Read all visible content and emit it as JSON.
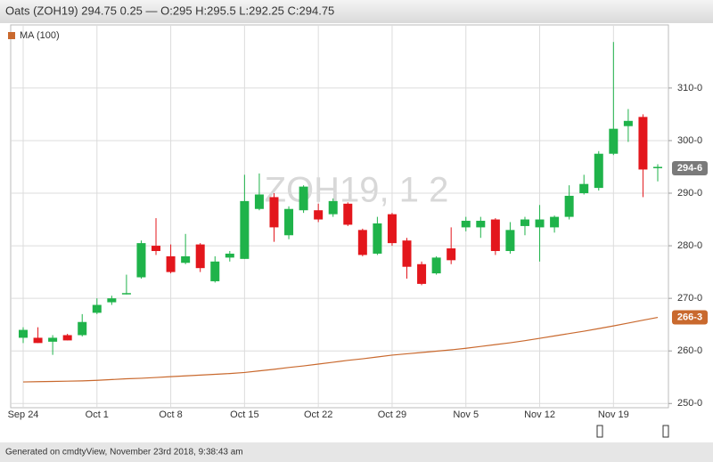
{
  "chart_data": {
    "type": "candlestick",
    "title": "Oats (ZOH19) 294.75 0.25 — O:295 H:295.5 L:292.25 C:294.75",
    "watermark": "ZOH19, 1 2",
    "footer": "Generated on cmdtyView, November 23rd 2018, 9:38:43 am",
    "categories": [
      "Sep 24",
      null,
      null,
      null,
      null,
      "Oct 1",
      null,
      null,
      null,
      null,
      "Oct 8",
      null,
      null,
      null,
      null,
      "Oct 15",
      null,
      null,
      null,
      null,
      "Oct 22",
      null,
      null,
      null,
      null,
      "Oct 29",
      null,
      null,
      null,
      null,
      "Nov 5",
      null,
      null,
      null,
      null,
      "Nov 12",
      null,
      null,
      null,
      null,
      "Nov 19",
      null,
      null,
      null
    ],
    "open": [
      262.5,
      262.5,
      261.75,
      263,
      263,
      267.25,
      269.25,
      270.75,
      274,
      280,
      278,
      276.75,
      280.25,
      273.25,
      277.75,
      277.5,
      287,
      289.25,
      282,
      286.75,
      286.75,
      286,
      288,
      283,
      278.5,
      286,
      281,
      276.5,
      274.75,
      279.5,
      283.5,
      283.5,
      285,
      279,
      283.75,
      283.5,
      283.5,
      285.5,
      290,
      291,
      297.5,
      302.75,
      304.5,
      295
    ],
    "high": [
      264.5,
      264.5,
      263,
      263.25,
      267,
      270,
      270.5,
      274.5,
      281,
      285.25,
      280.25,
      282.25,
      280.5,
      278,
      279,
      293.5,
      293.75,
      290,
      287.5,
      291.5,
      288,
      289,
      288.25,
      283.25,
      285.5,
      286.25,
      281.5,
      277,
      278,
      283.5,
      285.5,
      285.5,
      285.25,
      284.5,
      285.5,
      287.75,
      285.75,
      291.5,
      293.5,
      298,
      318.75,
      306,
      305,
      295.5
    ],
    "low": [
      261.5,
      261.5,
      259.25,
      262,
      262.75,
      267,
      268.75,
      270.75,
      273.75,
      278.25,
      274.75,
      276.5,
      275,
      273,
      277,
      277.5,
      286.75,
      280.75,
      281.25,
      286.25,
      284.5,
      285.5,
      283.75,
      278,
      278.25,
      280,
      273.75,
      272.5,
      274.5,
      276.5,
      282.75,
      281.5,
      278.25,
      278.5,
      282,
      277,
      282.5,
      285,
      289.75,
      290.5,
      297.25,
      299.75,
      289.25,
      292.25
    ],
    "close": [
      264,
      261.5,
      262.5,
      262,
      265.5,
      268.75,
      270,
      271,
      280.5,
      279,
      275,
      278,
      275.75,
      277,
      278.5,
      288.5,
      289.75,
      283.5,
      287,
      291.25,
      285,
      288.5,
      284,
      278.25,
      284.25,
      280.5,
      276,
      272.75,
      277.75,
      277.25,
      284.75,
      284.75,
      279,
      283,
      285,
      285,
      285.5,
      289.5,
      291.75,
      297.5,
      302.25,
      303.75,
      294.5,
      294.75
    ],
    "up_color": "#1fb34a",
    "down_color": "#e3161c",
    "last_price": {
      "value": 294.75,
      "label": "294-6"
    },
    "overlays": [
      {
        "name": "MA (100)",
        "color": "#c9692e",
        "values": [
          254.1,
          254.15,
          254.2,
          254.25,
          254.3,
          254.4,
          254.55,
          254.7,
          254.8,
          254.95,
          255.1,
          255.25,
          255.4,
          255.55,
          255.7,
          255.9,
          256.2,
          256.5,
          256.85,
          257.15,
          257.5,
          257.85,
          258.2,
          258.5,
          258.85,
          259.2,
          259.45,
          259.7,
          259.95,
          260.2,
          260.5,
          260.85,
          261.2,
          261.55,
          261.95,
          262.4,
          262.85,
          263.3,
          263.75,
          264.25,
          264.75,
          265.3,
          265.85,
          266.375
        ],
        "last_label": {
          "value": 266.375,
          "label": "266-3"
        }
      }
    ],
    "ylim": [
      249.2,
      322
    ],
    "yticks": [
      {
        "value": 250,
        "label": "250-0"
      },
      {
        "value": 260,
        "label": "260-0"
      },
      {
        "value": 270,
        "label": "270-0"
      },
      {
        "value": 280,
        "label": "280-0"
      },
      {
        "value": 290,
        "label": "290-0"
      },
      {
        "value": 300,
        "label": "300-0"
      },
      {
        "value": 310,
        "label": "310-0"
      }
    ],
    "grid": true
  }
}
